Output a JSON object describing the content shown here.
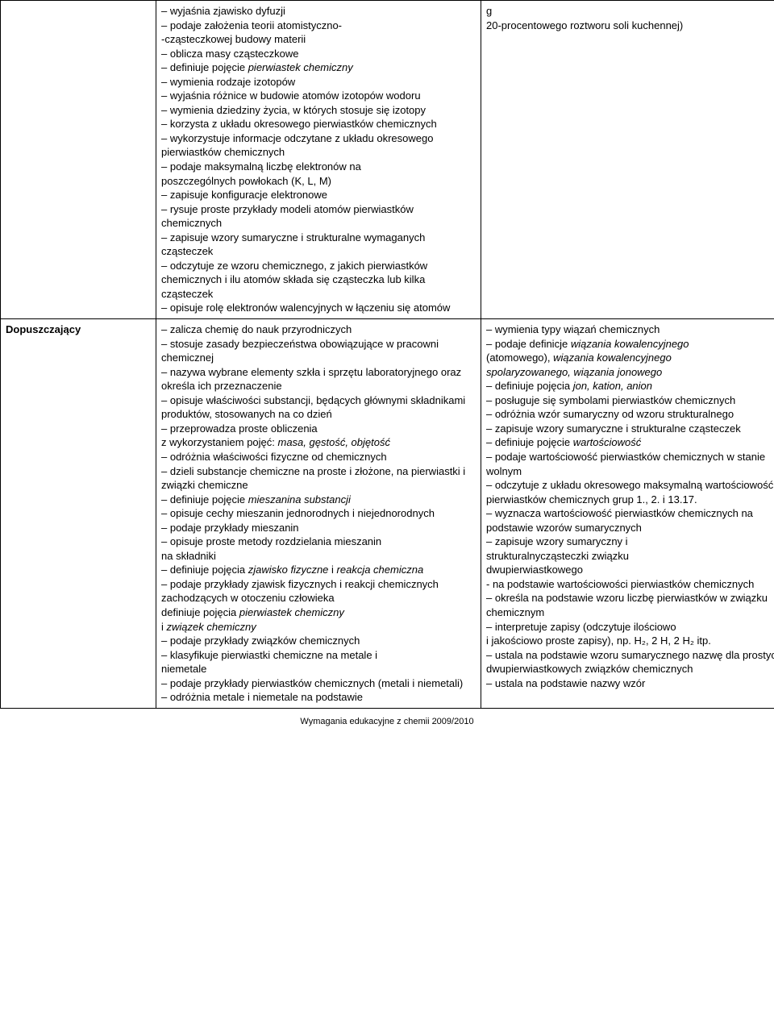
{
  "row1": {
    "label": "",
    "col1_items": [
      {
        "t": "– wyjaśnia zjawisko dyfuzji"
      },
      {
        "t": "– podaje założenia teorii atomistyczno-"
      },
      {
        "t": "-cząsteczkowej budowy materii"
      },
      {
        "t": "– oblicza masy cząsteczkowe"
      },
      {
        "t": "– definiuje pojęcie ",
        "i": "pierwiastek chemiczny"
      },
      {
        "t": "– wymienia rodzaje izotopów"
      },
      {
        "t": "– wyjaśnia różnice w budowie atomów izotopów wodoru"
      },
      {
        "t": "– wymienia dziedziny życia, w których stosuje się izotopy"
      },
      {
        "t": "– korzysta z układu okresowego pierwiastków chemicznych"
      },
      {
        "t": "– wykorzystuje informacje odczytane z układu okresowego pierwiastków chemicznych"
      },
      {
        "t": "– podaje maksymalną liczbę elektronów na"
      },
      {
        "t": " poszczególnych powłokach (K, L, M)"
      },
      {
        "t": "– zapisuje konfiguracje elektronowe"
      },
      {
        "t": "– rysuje proste przykłady modeli atomów pierwiastków chemicznych"
      },
      {
        "t": "– zapisuje wzory sumaryczne i strukturalne wymaganych cząsteczek"
      },
      {
        "t": "– odczytuje ze wzoru chemicznego, z jakich pierwiastków chemicznych i ilu atomów składa się cząsteczka lub kilka cząsteczek"
      },
      {
        "t": "– opisuje rolę elektronów walencyjnych w łączeniu się atomów"
      }
    ],
    "col2_items": [
      {
        "t": " g"
      },
      {
        "t": "20-procentowego roztworu soli kuchennej)"
      }
    ]
  },
  "row2": {
    "label": "Dopuszczający",
    "col1_items": [
      {
        "t": "– zalicza chemię do nauk przyrodniczych"
      },
      {
        "t": "– stosuje zasady bezpieczeństwa obowiązujące w pracowni chemicznej"
      },
      {
        "t": "– nazywa wybrane elementy szkła i sprzętu laboratoryjnego oraz określa ich przeznaczenie"
      },
      {
        "t": "– opisuje właściwości substancji, będących głównymi składnikami produktów, stosowanych na co dzień"
      },
      {
        "t": "– przeprowadza proste obliczenia"
      },
      {
        "t": "z wykorzystaniem pojęć: ",
        "i": "masa, gęstość, objętość"
      },
      {
        "t": "– odróżnia właściwości fizyczne od chemicznych"
      },
      {
        "t": "– dzieli substancje chemiczne na proste i złożone, na pierwiastki i związki chemiczne"
      },
      {
        "t": "– definiuje pojęcie ",
        "i": "mieszanina substancji"
      },
      {
        "t": "– opisuje cechy mieszanin jednorodnych i niejednorodnych"
      },
      {
        "t": "– podaje przykłady mieszanin"
      },
      {
        "t": "– opisuje proste metody rozdzielania mieszanin"
      },
      {
        "t": "  na składniki"
      },
      {
        "t": "– definiuje pojęcia ",
        "i": "zjawisko fizyczne",
        "t2": " i ",
        "i2": "reakcja chemiczna"
      },
      {
        "t": "– podaje przykłady zjawisk fizycznych i reakcji chemicznych zachodzących w otoczeniu człowieka"
      },
      {
        "t": "definiuje pojęcia ",
        "i": "pierwiastek chemiczny"
      },
      {
        "t": "i ",
        "i": "związek chemiczny"
      },
      {
        "t": "– podaje przykłady związków chemicznych"
      },
      {
        "t": "– klasyfikuje pierwiastki chemiczne na metale i"
      },
      {
        "t": "  niemetale"
      },
      {
        "t": "– podaje przykłady pierwiastków chemicznych (metali i niemetali)"
      },
      {
        "t": "– odróżnia metale i niemetale na podstawie"
      }
    ],
    "col2_items": [
      {
        "t": "– wymienia typy wiązań chemicznych"
      },
      {
        "t": "– podaje definicje ",
        "i": "wiązania kowalencyjnego"
      },
      {
        "t": "(atomowego), ",
        "i": "wiązania kowalencyjnego"
      },
      {
        "t": " ",
        "i": "spolaryzowanego, wiązania jonowego"
      },
      {
        "t": "– definiuje pojęcia ",
        "i": "jon, kation, anion"
      },
      {
        "t": "– posługuje się symbolami pierwiastków chemicznych"
      },
      {
        "t": "– odróżnia wzór sumaryczny od wzoru strukturalnego"
      },
      {
        "t": "– zapisuje wzory sumaryczne i strukturalne cząsteczek"
      },
      {
        "t": "– definiuje pojęcie ",
        "i": "wartościowość"
      },
      {
        "t": "– podaje wartościowość pierwiastków chemicznych w stanie wolnym"
      },
      {
        "t": "– odczytuje z układu okresowego maksymalną wartościowość pierwiastków chemicznych grup 1., 2. i 13.17."
      },
      {
        "t": "– wyznacza wartościowość pierwiastków chemicznych na podstawie wzorów sumarycznych"
      },
      {
        "t": "– zapisuje wzory sumaryczny i"
      },
      {
        "t": "  strukturalnycząsteczki związku"
      },
      {
        "t": "  dwupierwiastkowego"
      },
      {
        "t": "- na podstawie wartościowości pierwiastków chemicznych"
      },
      {
        "t": "– określa na podstawie wzoru liczbę pierwiastków w związku chemicznym"
      },
      {
        "t": "– interpretuje zapisy (odczytuje ilościowo"
      },
      {
        "t": "i jakościowo proste zapisy), np. H₂, 2 H, 2 H₂ itp."
      },
      {
        "t": "– ustala na podstawie wzoru sumarycznego nazwę dla prostych dwupierwiastkowych związków chemicznych"
      },
      {
        "t": "– ustala na podstawie nazwy wzór"
      }
    ]
  },
  "footer": "Wymagania edukacyjne z chemii 2009/2010"
}
